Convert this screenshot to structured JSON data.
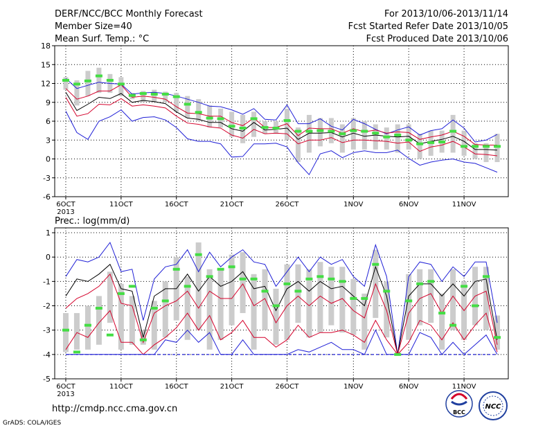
{
  "header": {
    "title": "DERF/NCC/BCC Monthly Forecast",
    "member_size": "Member Size=40",
    "variable": "Mean Surf. Temp.: °C",
    "period": "For 2013/10/06-2013/11/14",
    "started": "Fcst Started Refer Date 2013/10/05",
    "produced": "Fcst Produced Date 2013/10/06"
  },
  "prec_label": "Prec.: log(mm/d)",
  "footer": {
    "url": "http://cmdp.ncc.cma.gov.cn",
    "credit": "GrADS: COLA/IGES",
    "logo_bcc": "BCC",
    "logo_ncc": "NCC"
  },
  "colors": {
    "box": "#cccccc",
    "median": "#000000",
    "quartile": "#d4002a",
    "extreme": "#1f1fd6",
    "obs": "#44dd44",
    "baseline": "#1f1fd6"
  },
  "chart_data": [
    {
      "type": "line",
      "title": "Mean Surf. Temp.: °C",
      "x": [
        1,
        2,
        3,
        4,
        5,
        6,
        7,
        8,
        9,
        10,
        11,
        12,
        13,
        14,
        15,
        16,
        17,
        18,
        19,
        20,
        21,
        22,
        23,
        24,
        25,
        26,
        27,
        28,
        29,
        30,
        31,
        32,
        33,
        34,
        35,
        36,
        37,
        38,
        39,
        40
      ],
      "xlim": [
        0,
        41
      ],
      "xticks": [
        {
          "x": 1,
          "label": "6OCT",
          "sub": "2013"
        },
        {
          "x": 6,
          "label": "11OCT"
        },
        {
          "x": 11,
          "label": "16OCT"
        },
        {
          "x": 16,
          "label": "21OCT"
        },
        {
          "x": 21,
          "label": "26OCT"
        },
        {
          "x": 27,
          "label": "1NOV"
        },
        {
          "x": 32,
          "label": "6NOV"
        },
        {
          "x": 37,
          "label": "11NOV"
        }
      ],
      "ylim": [
        -6,
        18
      ],
      "yticks": [
        -6,
        -3,
        0,
        3,
        6,
        9,
        12,
        15,
        18
      ],
      "grid": true,
      "series": [
        {
          "role": "max",
          "values": [
            12.8,
            11.2,
            11.7,
            12.2,
            12.0,
            11.9,
            10.3,
            10.5,
            10.6,
            10.4,
            10.0,
            9.5,
            9.0,
            8.4,
            8.3,
            7.8,
            7.1,
            8.0,
            6.3,
            6.2,
            8.6,
            5.6,
            5.6,
            6.4,
            5.2,
            4.6,
            6.3,
            5.6,
            4.7,
            4.0,
            4.6,
            5.1,
            3.8,
            4.5,
            4.8,
            6.2,
            4.9,
            2.7,
            3.0,
            3.9
          ]
        },
        {
          "role": "q3",
          "values": [
            11.2,
            9.5,
            10.0,
            10.8,
            10.8,
            11.8,
            9.8,
            10.0,
            9.8,
            9.5,
            8.3,
            7.3,
            7.2,
            6.8,
            6.8,
            5.8,
            5.3,
            6.5,
            5.0,
            5.0,
            5.6,
            3.7,
            4.9,
            4.8,
            4.8,
            4.1,
            4.8,
            4.3,
            4.6,
            4.1,
            4.3,
            4.2,
            3.1,
            3.5,
            3.8,
            4.4,
            3.6,
            2.3,
            2.2,
            2.2
          ]
        },
        {
          "role": "median",
          "values": [
            10.6,
            7.7,
            8.7,
            9.8,
            9.6,
            10.4,
            9.0,
            9.3,
            9.1,
            8.8,
            7.5,
            6.5,
            6.3,
            5.8,
            5.8,
            4.8,
            4.4,
            5.8,
            4.6,
            4.7,
            4.9,
            3.1,
            4.1,
            4.1,
            4.2,
            3.5,
            4.1,
            3.6,
            3.8,
            3.6,
            3.5,
            3.6,
            2.4,
            2.8,
            3.1,
            3.6,
            2.8,
            1.5,
            1.5,
            1.4
          ]
        },
        {
          "role": "q1",
          "values": [
            9.8,
            6.8,
            7.2,
            8.7,
            8.6,
            9.6,
            8.4,
            8.6,
            8.4,
            8.1,
            6.8,
            5.7,
            5.5,
            5.1,
            4.9,
            3.8,
            3.3,
            4.7,
            4.0,
            4.1,
            4.0,
            2.4,
            3.0,
            3.0,
            3.4,
            2.6,
            3.0,
            3.0,
            2.9,
            2.8,
            2.5,
            2.7,
            1.2,
            1.9,
            2.2,
            2.8,
            1.9,
            0.8,
            0.7,
            0.5
          ]
        },
        {
          "role": "min",
          "values": [
            7.6,
            4.2,
            3.1,
            6.0,
            6.7,
            7.8,
            6.0,
            6.6,
            6.7,
            6.2,
            5.0,
            3.2,
            2.8,
            2.8,
            2.4,
            0.3,
            0.4,
            2.4,
            2.4,
            2.5,
            1.9,
            -0.6,
            -2.5,
            0.8,
            1.3,
            0.2,
            1.0,
            1.3,
            1.0,
            1.0,
            1.4,
            0.1,
            -1.0,
            -0.5,
            -0.2,
            0.0,
            -0.5,
            -0.7,
            -1.4,
            -2.1
          ]
        },
        {
          "role": "obs",
          "values": [
            12.5,
            11.9,
            12.4,
            13.2,
            12.5,
            11.9,
            10.1,
            10.4,
            10.3,
            10.3,
            9.9,
            8.7,
            7.4,
            6.5,
            6.4,
            5.2,
            4.9,
            6.4,
            5.0,
            4.9,
            6.1,
            4.4,
            4.4,
            4.5,
            4.4,
            4.0,
            4.5,
            4.4,
            4.1,
            3.5,
            3.8,
            3.0,
            2.4,
            2.6,
            2.7,
            4.4,
            2.0,
            2.0,
            2.0,
            2.0
          ]
        }
      ],
      "boxes": [
        {
          "lo": 11.0,
          "hi": 13.0
        },
        {
          "lo": 8.5,
          "hi": 12.5
        },
        {
          "lo": 10.0,
          "hi": 14.0
        },
        {
          "lo": 10.5,
          "hi": 14.5
        },
        {
          "lo": 10.5,
          "hi": 13.5
        },
        {
          "lo": 10.0,
          "hi": 13.0
        },
        {
          "lo": 9.5,
          "hi": 10.5
        },
        {
          "lo": 9.0,
          "hi": 10.8
        },
        {
          "lo": 9.0,
          "hi": 11.0
        },
        {
          "lo": 9.0,
          "hi": 10.7
        },
        {
          "lo": 7.5,
          "hi": 10.5
        },
        {
          "lo": 6.5,
          "hi": 10.0
        },
        {
          "lo": 6.0,
          "hi": 9.5
        },
        {
          "lo": 5.0,
          "hi": 8.5
        },
        {
          "lo": 5.0,
          "hi": 8.0
        },
        {
          "lo": 3.5,
          "hi": 7.5
        },
        {
          "lo": 2.5,
          "hi": 7.0
        },
        {
          "lo": 3.5,
          "hi": 7.5
        },
        {
          "lo": 4.0,
          "hi": 6.0
        },
        {
          "lo": 4.0,
          "hi": 6.0
        },
        {
          "lo": 3.0,
          "hi": 8.0
        },
        {
          "lo": -0.5,
          "hi": 5.0
        },
        {
          "lo": 1.0,
          "hi": 7.0
        },
        {
          "lo": 2.0,
          "hi": 6.5
        },
        {
          "lo": 2.5,
          "hi": 6.5
        },
        {
          "lo": 1.0,
          "hi": 5.5
        },
        {
          "lo": 1.5,
          "hi": 6.5
        },
        {
          "lo": 1.5,
          "hi": 6.0
        },
        {
          "lo": 1.5,
          "hi": 5.5
        },
        {
          "lo": 1.5,
          "hi": 5.0
        },
        {
          "lo": 1.0,
          "hi": 5.5
        },
        {
          "lo": 1.5,
          "hi": 5.5
        },
        {
          "lo": 0.0,
          "hi": 4.0
        },
        {
          "lo": 0.5,
          "hi": 4.5
        },
        {
          "lo": 1.0,
          "hi": 4.5
        },
        {
          "lo": 1.0,
          "hi": 7.0
        },
        {
          "lo": 0.5,
          "hi": 4.5
        },
        {
          "lo": 0.0,
          "hi": 2.5
        },
        {
          "lo": -0.5,
          "hi": 2.5
        },
        {
          "lo": -0.5,
          "hi": 4.0
        }
      ]
    },
    {
      "type": "line",
      "title": "Prec.: log(mm/d)",
      "x": [
        1,
        2,
        3,
        4,
        5,
        6,
        7,
        8,
        9,
        10,
        11,
        12,
        13,
        14,
        15,
        16,
        17,
        18,
        19,
        20,
        21,
        22,
        23,
        24,
        25,
        26,
        27,
        28,
        29,
        30,
        31,
        32,
        33,
        34,
        35,
        36,
        37,
        38,
        39,
        40
      ],
      "xlim": [
        0,
        41
      ],
      "xticks": [
        {
          "x": 1,
          "label": "6OCT",
          "sub": "2013"
        },
        {
          "x": 6,
          "label": "11OCT"
        },
        {
          "x": 11,
          "label": "16OCT"
        },
        {
          "x": 16,
          "label": "21OCT"
        },
        {
          "x": 21,
          "label": "26OCT"
        },
        {
          "x": 27,
          "label": "1NOV"
        },
        {
          "x": 32,
          "label": "6NOV"
        },
        {
          "x": 37,
          "label": "11NOV"
        }
      ],
      "ylim": [
        -5,
        1.2
      ],
      "yticks": [
        -5,
        -4,
        -3,
        -2,
        -1,
        0,
        1
      ],
      "grid": true,
      "baseline": -4,
      "series": [
        {
          "role": "max",
          "values": [
            -0.8,
            -0.1,
            -0.2,
            0.0,
            0.6,
            -0.6,
            -0.5,
            -2.6,
            -0.9,
            -0.4,
            -0.3,
            0.3,
            -0.6,
            0.2,
            -0.4,
            0.0,
            0.3,
            -0.2,
            -0.3,
            -1.2,
            -0.6,
            0.0,
            -0.6,
            0.0,
            -0.3,
            -0.1,
            -0.8,
            -1.2,
            0.5,
            -0.8,
            -4.0,
            -0.8,
            -0.2,
            -0.3,
            -1.0,
            -0.4,
            -0.8,
            -0.2,
            -0.2,
            -2.7
          ]
        },
        {
          "role": "median",
          "values": [
            -1.6,
            -0.9,
            -1.0,
            -0.7,
            -0.3,
            -1.3,
            -1.4,
            -3.3,
            -1.6,
            -1.3,
            -1.3,
            -0.7,
            -1.4,
            -0.8,
            -1.2,
            -1.0,
            -0.6,
            -1.3,
            -1.2,
            -2.2,
            -1.3,
            -1.0,
            -1.4,
            -1.0,
            -1.3,
            -1.2,
            -1.6,
            -2.0,
            -0.4,
            -1.6,
            -4.0,
            -1.6,
            -1.1,
            -1.1,
            -1.6,
            -1.1,
            -1.6,
            -1.0,
            -0.9,
            -3.4
          ]
        },
        {
          "role": "q3",
          "values": [
            -2.1,
            -1.7,
            -1.5,
            -1.2,
            -0.7,
            -1.9,
            -2.0,
            -3.5,
            -2.3,
            -2.0,
            -1.8,
            -1.4,
            -2.1,
            -1.4,
            -1.7,
            -1.7,
            -1.1,
            -2.0,
            -1.7,
            -2.7,
            -2.0,
            -1.6,
            -2.0,
            -1.6,
            -1.9,
            -1.7,
            -2.2,
            -2.5,
            -1.1,
            -2.2,
            -4.0,
            -2.3,
            -1.7,
            -1.5,
            -2.3,
            -1.6,
            -2.2,
            -1.6,
            -1.4,
            -3.6
          ]
        },
        {
          "role": "q1",
          "values": [
            -3.8,
            -3.1,
            -3.3,
            -2.7,
            -2.2,
            -3.5,
            -3.5,
            -4.0,
            -3.6,
            -3.3,
            -2.9,
            -2.3,
            -3.0,
            -2.4,
            -3.4,
            -3.1,
            -2.6,
            -3.3,
            -3.3,
            -3.7,
            -3.4,
            -2.8,
            -3.3,
            -3.1,
            -3.1,
            -3.0,
            -3.2,
            -3.5,
            -2.6,
            -3.4,
            -4.0,
            -3.5,
            -2.6,
            -2.8,
            -3.4,
            -2.7,
            -3.4,
            -2.8,
            -2.3,
            -3.9
          ]
        },
        {
          "role": "min",
          "values": [
            -4.0,
            -4.0,
            -4.0,
            -4.0,
            -4.0,
            -4.0,
            -4.0,
            -4.0,
            -4.0,
            -3.4,
            -3.5,
            -3.0,
            -3.5,
            -3.1,
            -4.0,
            -4.0,
            -3.4,
            -4.0,
            -4.0,
            -4.0,
            -4.0,
            -3.8,
            -3.9,
            -3.7,
            -3.5,
            -3.8,
            -3.8,
            -4.0,
            -3.0,
            -4.0,
            -4.0,
            -4.0,
            -3.1,
            -3.3,
            -4.0,
            -3.5,
            -4.0,
            -3.6,
            -3.2,
            -4.0
          ]
        },
        {
          "role": "obs",
          "values": [
            -3.0,
            -3.9,
            -2.8,
            -2.1,
            -3.2,
            -1.5,
            -1.2,
            -3.4,
            -2.1,
            -1.8,
            -0.5,
            -1.2,
            0.1,
            -0.8,
            -0.5,
            -0.4,
            -0.9,
            -0.9,
            -1.4,
            -2.0,
            -1.1,
            -1.4,
            -0.9,
            -0.8,
            -0.9,
            -1.0,
            -1.7,
            -1.7,
            -0.3,
            -1.4,
            -4.0,
            -1.8,
            -1.1,
            -1.0,
            -2.3,
            -2.8,
            -1.2,
            -2.0,
            -0.8,
            -3.3
          ]
        }
      ],
      "boxes": [
        {
          "lo": -3.9,
          "hi": -2.3
        },
        {
          "lo": -3.8,
          "hi": -2.3
        },
        {
          "lo": -3.8,
          "hi": -2.0
        },
        {
          "lo": -3.6,
          "hi": -1.6
        },
        {
          "lo": -2.7,
          "hi": -0.6
        },
        {
          "lo": -3.8,
          "hi": -1.1
        },
        {
          "lo": -3.6,
          "hi": -1.6
        },
        {
          "lo": -3.6,
          "hi": -3.0
        },
        {
          "lo": -3.8,
          "hi": -1.8
        },
        {
          "lo": -3.3,
          "hi": -1.0
        },
        {
          "lo": -2.6,
          "hi": 0.0
        },
        {
          "lo": -3.4,
          "hi": -0.8
        },
        {
          "lo": -3.0,
          "hi": 0.6
        },
        {
          "lo": -3.8,
          "hi": -0.5
        },
        {
          "lo": -3.4,
          "hi": -0.5
        },
        {
          "lo": -2.8,
          "hi": 0.1
        },
        {
          "lo": -2.3,
          "hi": 0.2
        },
        {
          "lo": -3.8,
          "hi": -0.7
        },
        {
          "lo": -3.0,
          "hi": -0.5
        },
        {
          "lo": -3.6,
          "hi": -1.3
        },
        {
          "lo": -3.4,
          "hi": -0.3
        },
        {
          "lo": -2.7,
          "hi": -0.3
        },
        {
          "lo": -3.3,
          "hi": -0.5
        },
        {
          "lo": -3.1,
          "hi": -0.2
        },
        {
          "lo": -2.8,
          "hi": -0.4
        },
        {
          "lo": -3.1,
          "hi": -0.4
        },
        {
          "lo": -3.2,
          "hi": -0.9
        },
        {
          "lo": -3.8,
          "hi": -1.5
        },
        {
          "lo": -2.5,
          "hi": 0.3
        },
        {
          "lo": -3.3,
          "hi": -1.0
        },
        {
          "lo": -4.0,
          "hi": -3.9
        },
        {
          "lo": -3.4,
          "hi": -0.7
        },
        {
          "lo": -2.8,
          "hi": -0.5
        },
        {
          "lo": -2.7,
          "hi": -0.5
        },
        {
          "lo": -3.8,
          "hi": -1.5
        },
        {
          "lo": -3.0,
          "hi": -0.5
        },
        {
          "lo": -3.4,
          "hi": -1.0
        },
        {
          "lo": -2.8,
          "hi": -0.4
        },
        {
          "lo": -3.0,
          "hi": -0.4
        },
        {
          "lo": -3.8,
          "hi": -2.4
        }
      ]
    }
  ]
}
